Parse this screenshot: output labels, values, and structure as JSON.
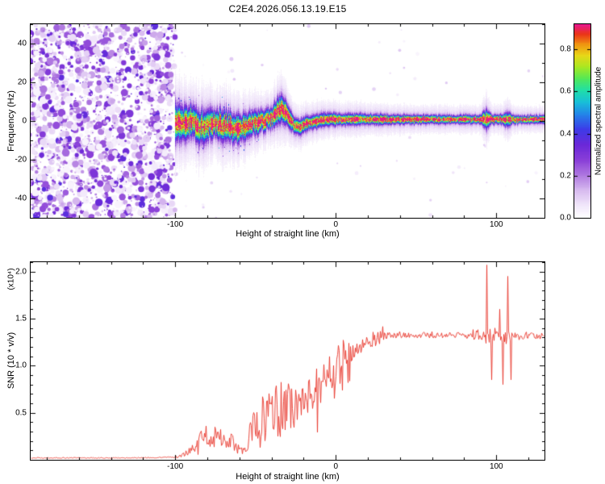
{
  "title": "C2E4.2026.056.13.19.E15",
  "chart_data": [
    {
      "type": "heatmap",
      "title": "C2E4.2026.056.13.19.E15",
      "xlabel": "Height of straight line (km)",
      "ylabel": "Frequency (Hz)",
      "xlim": [
        -190,
        130
      ],
      "ylim": [
        -50,
        50
      ],
      "xticks": [
        -100,
        0,
        100
      ],
      "x_minor_step": 20,
      "yticks": [
        -40,
        -20,
        0,
        20,
        40
      ],
      "y_minor_step": 10,
      "colorbar": {
        "label": "Normalized spectral amplitude",
        "ticks": [
          0.0,
          0.2,
          0.4,
          0.6,
          0.8
        ],
        "vmax": 0.92
      },
      "colormap_stops": [
        [
          0.0,
          "#ffffff"
        ],
        [
          0.06,
          "#f3eafb"
        ],
        [
          0.14,
          "#d9bdf0"
        ],
        [
          0.22,
          "#b07ae0"
        ],
        [
          0.3,
          "#8a3fd8"
        ],
        [
          0.38,
          "#6a28d8"
        ],
        [
          0.46,
          "#3c3ce8"
        ],
        [
          0.54,
          "#2288e8"
        ],
        [
          0.6,
          "#18c0d8"
        ],
        [
          0.66,
          "#20dfa8"
        ],
        [
          0.72,
          "#52e858"
        ],
        [
          0.78,
          "#a8e822"
        ],
        [
          0.84,
          "#e8d818"
        ],
        [
          0.9,
          "#f09010"
        ],
        [
          0.95,
          "#ea3418"
        ],
        [
          1.0,
          "#e8188c"
        ]
      ],
      "noise_region": {
        "x_start": -190,
        "x_end": -100,
        "amp_max": 0.38,
        "description": "dense random purple speckle over full frequency band below -100 km"
      },
      "signal_trace": {
        "description": "narrow high-amplitude echo trace near 0 Hz from -100 km to 130 km, wiggly and broad from -100 to -30 km, thin and straight above, brief broadenings near 94 and 107 km",
        "heights_km": [
          -100,
          -95,
          -90,
          -85,
          -80,
          -75,
          -70,
          -65,
          -60,
          -55,
          -50,
          -45,
          -40,
          -37,
          -34,
          -30,
          -26,
          -22,
          -18,
          -12,
          -6,
          0,
          10,
          20,
          40,
          60,
          80,
          90,
          94,
          97,
          104,
          107,
          110,
          115,
          130
        ],
        "center_hz": [
          -1,
          -2,
          0,
          -3,
          -2,
          -1,
          -2,
          -3,
          -4,
          -2,
          -1,
          0,
          2,
          5,
          7,
          3,
          -2,
          -3,
          -1,
          0,
          1,
          1,
          1,
          1,
          1,
          1,
          1,
          1,
          1,
          1,
          1,
          1,
          1,
          1,
          1
        ],
        "sigma_hz": [
          5.5,
          5,
          4.5,
          5,
          4.5,
          4,
          4.5,
          4,
          4,
          3.5,
          3.5,
          3,
          3,
          3.5,
          4,
          3,
          2.5,
          2.2,
          2,
          2,
          1.8,
          1.7,
          1.6,
          1.5,
          1.3,
          1.2,
          1.2,
          1.2,
          2.8,
          1.3,
          1.3,
          2.4,
          1.2,
          1.1,
          1.1
        ],
        "peak_amp": [
          0.95,
          0.9,
          0.92,
          0.88,
          0.9,
          0.92,
          0.9,
          0.93,
          0.9,
          0.88,
          0.9,
          0.87,
          0.9,
          0.93,
          0.95,
          0.9,
          0.88,
          0.9,
          0.9,
          0.92,
          0.93,
          0.94,
          0.95,
          0.95,
          0.96,
          0.96,
          0.96,
          0.96,
          0.9,
          0.95,
          0.95,
          0.9,
          0.96,
          0.96,
          0.97
        ]
      }
    },
    {
      "type": "line",
      "xlabel": "Height of straight line (km)",
      "ylabel": "SNR (10 * v/v)",
      "scale_label": "(x10⁴)",
      "xlim": [
        -190,
        130
      ],
      "ylim": [
        0,
        2.1
      ],
      "xticks": [
        -100,
        0,
        100
      ],
      "x_minor_step": 20,
      "yticks": [
        0.5,
        1.0,
        1.5,
        2.0
      ],
      "y_minor_step": 0.1,
      "series": [
        {
          "name": "SNR",
          "color": "#e8352a",
          "control_points": [
            [
              -190,
              0.02
            ],
            [
              -160,
              0.02
            ],
            [
              -130,
              0.02
            ],
            [
              -110,
              0.025
            ],
            [
              -100,
              0.03
            ],
            [
              -96,
              0.04
            ],
            [
              -92,
              0.08
            ],
            [
              -88,
              0.13
            ],
            [
              -84,
              0.22
            ],
            [
              -80,
              0.26
            ],
            [
              -77,
              0.2
            ],
            [
              -74,
              0.27
            ],
            [
              -71,
              0.24
            ],
            [
              -68,
              0.15
            ],
            [
              -65,
              0.2
            ],
            [
              -62,
              0.13
            ],
            [
              -59,
              0.1
            ],
            [
              -56,
              0.12
            ],
            [
              -53,
              0.3
            ],
            [
              -50,
              0.45
            ],
            [
              -48,
              0.32
            ],
            [
              -46,
              0.48
            ],
            [
              -44,
              0.38
            ],
            [
              -42,
              0.52
            ],
            [
              -40,
              0.42
            ],
            [
              -38,
              0.58
            ],
            [
              -36,
              0.48
            ],
            [
              -34,
              0.6
            ],
            [
              -32,
              0.5
            ],
            [
              -30,
              0.6
            ],
            [
              -28,
              0.52
            ],
            [
              -26,
              0.64
            ],
            [
              -24,
              0.55
            ],
            [
              -22,
              0.6
            ],
            [
              -20,
              0.68
            ],
            [
              -18,
              0.6
            ],
            [
              -16,
              0.72
            ],
            [
              -14,
              0.65
            ],
            [
              -12,
              0.78
            ],
            [
              -10,
              0.7
            ],
            [
              -8,
              0.82
            ],
            [
              -6,
              0.78
            ],
            [
              -4,
              0.88
            ],
            [
              -2,
              0.85
            ],
            [
              0,
              0.95
            ],
            [
              3,
              1.0
            ],
            [
              6,
              1.05
            ],
            [
              9,
              1.1
            ],
            [
              12,
              1.15
            ],
            [
              16,
              1.22
            ],
            [
              20,
              1.27
            ],
            [
              25,
              1.3
            ],
            [
              30,
              1.32
            ],
            [
              40,
              1.33
            ],
            [
              50,
              1.32
            ],
            [
              60,
              1.33
            ],
            [
              70,
              1.33
            ],
            [
              80,
              1.32
            ],
            [
              85,
              1.33
            ],
            [
              90,
              1.32
            ],
            [
              95,
              1.31
            ],
            [
              100,
              1.32
            ],
            [
              105,
              1.3
            ],
            [
              110,
              1.31
            ],
            [
              120,
              1.32
            ],
            [
              130,
              1.31
            ]
          ],
          "noise_regions": [
            [
              -190,
              -100,
              0.25
            ],
            [
              -100,
              -60,
              0.45
            ],
            [
              -60,
              -25,
              0.5
            ],
            [
              -25,
              10,
              0.3
            ],
            [
              10,
              30,
              0.08
            ],
            [
              30,
              85,
              0.025
            ],
            [
              85,
              108,
              0.06
            ],
            [
              108,
              130,
              0.03
            ]
          ],
          "spikes": [
            [
              94,
              2.07
            ],
            [
              97,
              0.85
            ],
            [
              99,
              1.4
            ],
            [
              102,
              1.6
            ],
            [
              104,
              0.8
            ],
            [
              107,
              1.95
            ],
            [
              109,
              0.85
            ],
            [
              111,
              1.3
            ]
          ]
        }
      ]
    }
  ]
}
